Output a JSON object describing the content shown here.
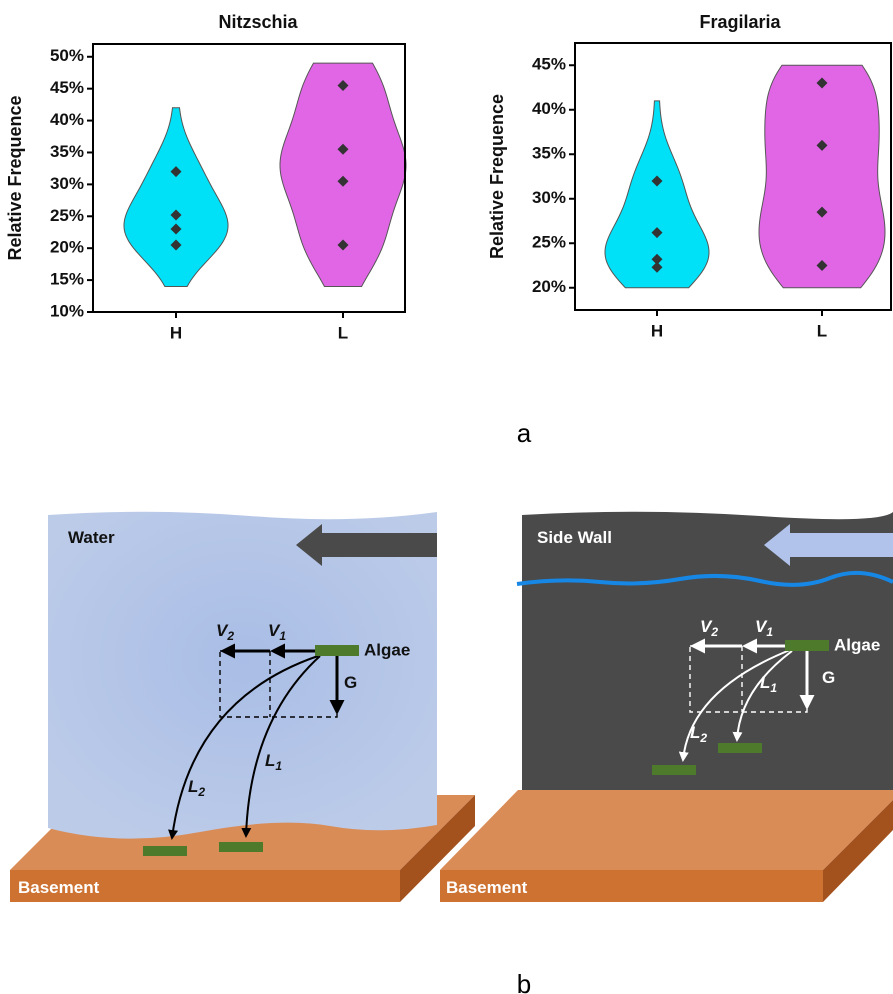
{
  "chart_data": [
    {
      "type": "violin",
      "title": "Nitzschia",
      "ylabel": "Relative Frequence",
      "categories": [
        "H",
        "L"
      ],
      "groups": [
        {
          "color": "#00e1f7",
          "range": [
            14,
            42
          ],
          "values": [
            32,
            25.2,
            23,
            20.5
          ]
        },
        {
          "color": "#e066e6",
          "range": [
            14,
            49
          ],
          "values": [
            45.5,
            35.5,
            30.5,
            20.5
          ]
        }
      ],
      "ylim": [
        10,
        52
      ],
      "yticks": [
        {
          "value": 10,
          "label": "10%"
        },
        {
          "value": 15,
          "label": "15%"
        },
        {
          "value": 20,
          "label": "20%"
        },
        {
          "value": 25,
          "label": "25%"
        },
        {
          "value": 30,
          "label": "30%"
        },
        {
          "value": 35,
          "label": "35%"
        },
        {
          "value": 40,
          "label": "40%"
        },
        {
          "value": 45,
          "label": "45%"
        },
        {
          "value": 50,
          "label": "50%"
        }
      ]
    },
    {
      "type": "violin",
      "title": "Fragilaria",
      "ylabel": "Relative Frequence",
      "categories": [
        "H",
        "L"
      ],
      "groups": [
        {
          "color": "#00e1f7",
          "range": [
            20,
            41
          ],
          "values": [
            32,
            26.2,
            23.2,
            22.3
          ]
        },
        {
          "color": "#e066e6",
          "range": [
            20,
            45
          ],
          "values": [
            43,
            36,
            28.5,
            22.5
          ]
        }
      ],
      "ylim": [
        17.5,
        47.5
      ],
      "yticks": [
        {
          "value": 20,
          "label": "20%"
        },
        {
          "value": 25,
          "label": "25%"
        },
        {
          "value": 30,
          "label": "30%"
        },
        {
          "value": 35,
          "label": "35%"
        },
        {
          "value": 40,
          "label": "40%"
        },
        {
          "value": 45,
          "label": "45%"
        }
      ]
    }
  ],
  "panel_labels": [
    "a",
    "b"
  ],
  "diagrams": [
    {
      "medium": "Water",
      "algae": "Algae",
      "gravity": "G",
      "v1": {
        "symbol": "V",
        "subscript": "1"
      },
      "v2": {
        "symbol": "V",
        "subscript": "2"
      },
      "l1": {
        "symbol": "L",
        "subscript": "1"
      },
      "l2": {
        "symbol": "L",
        "subscript": "2"
      },
      "base": "Basement"
    },
    {
      "medium": "Side Wall",
      "algae": "Algae",
      "gravity": "G",
      "v1": {
        "symbol": "V",
        "subscript": "1"
      },
      "v2": {
        "symbol": "V",
        "subscript": "2"
      },
      "l1": {
        "symbol": "L",
        "subscript": "1"
      },
      "l2": {
        "symbol": "L",
        "subscript": "2"
      },
      "base": "Basement"
    }
  ]
}
